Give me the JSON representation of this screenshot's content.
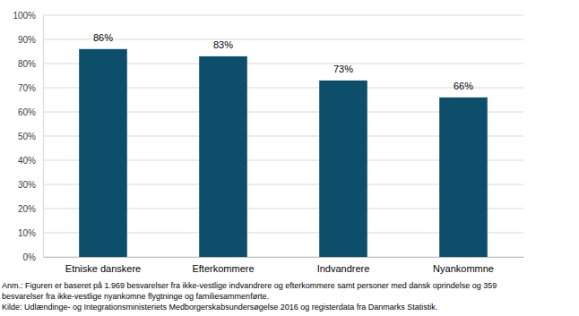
{
  "chart_data": {
    "type": "bar",
    "categories": [
      "Etniske danskere",
      "Efterkommere",
      "Indvandrere",
      "Nyankommne"
    ],
    "values": [
      86,
      83,
      73,
      66
    ],
    "value_labels": [
      "86%",
      "83%",
      "73%",
      "66%"
    ],
    "data_labels": true,
    "color": "#0d4f6b",
    "ylim": [
      0,
      100
    ],
    "yticks": [
      {
        "value": 0,
        "label": "0%"
      },
      {
        "value": 10,
        "label": "10%"
      },
      {
        "value": 20,
        "label": "20%"
      },
      {
        "value": 30,
        "label": "30%"
      },
      {
        "value": 40,
        "label": "40%"
      },
      {
        "value": 50,
        "label": "50%"
      },
      {
        "value": 60,
        "label": "60%"
      },
      {
        "value": 70,
        "label": "70%"
      },
      {
        "value": 80,
        "label": "80%"
      },
      {
        "value": 90,
        "label": "90%"
      },
      {
        "value": 100,
        "label": "100%"
      }
    ],
    "grid": true,
    "annotations": [
      "Anm.: Figuren er baseret på 1.969 besvarelser fra ikke-vestlige indvandrere og efterkommere samt personer med dansk oprindelse og 359",
      "besvarelser fra ikke-vestlige nyankomne flygtninge og familiesammenførte.",
      "Kilde: Udlændinge- og Integrationsministeriets Medborgerskabsundersøgelse 2016 og registerdata fra Danmarks Statistik."
    ]
  }
}
